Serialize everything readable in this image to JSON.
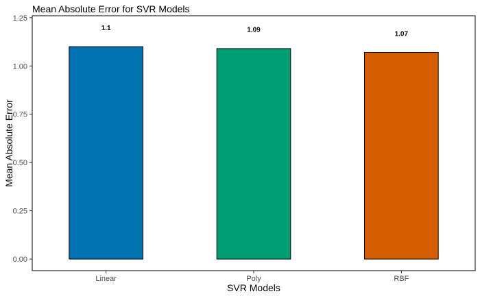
{
  "chart_data": {
    "type": "bar",
    "title": "Mean Absolute Error for SVR Models",
    "xlabel": "SVR Models",
    "ylabel": "Mean Absolute Error",
    "categories": [
      "Linear",
      "Poly",
      "RBF"
    ],
    "values": [
      1.1,
      1.09,
      1.07
    ],
    "value_labels": [
      "1.1",
      "1.09",
      "1.07"
    ],
    "colors": [
      "#0072B2",
      "#009E73",
      "#D55E00"
    ],
    "ylim": [
      -0.06,
      1.26
    ],
    "yticks": [
      0,
      0.25,
      0.5,
      0.75,
      1.0,
      1.25
    ],
    "ytick_labels": [
      "0.00",
      "0.25",
      "0.50",
      "0.75",
      "1.00",
      "1.25"
    ],
    "grid": false,
    "legend": "none"
  }
}
